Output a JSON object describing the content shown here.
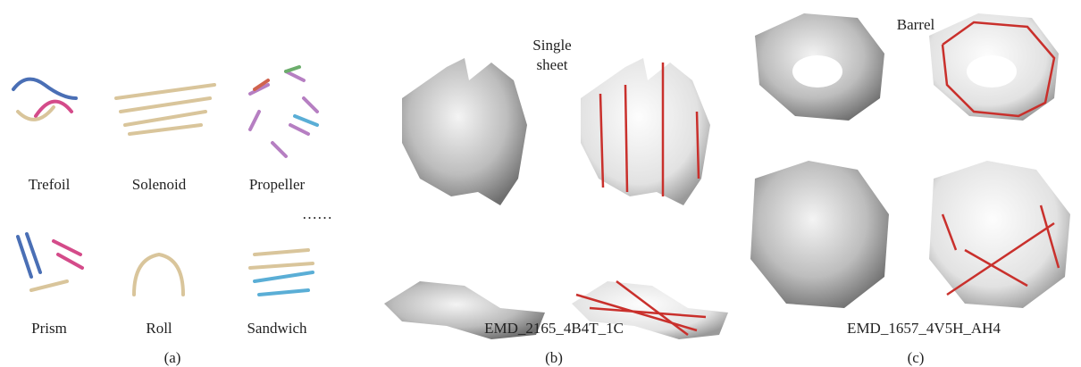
{
  "panel_a": {
    "items": [
      {
        "label": "Trefoil"
      },
      {
        "label": "Solenoid"
      },
      {
        "label": "Propeller"
      },
      {
        "label": "Prism"
      },
      {
        "label": "Roll"
      },
      {
        "label": "Sandwich"
      }
    ],
    "ellipsis": "……",
    "caption": "(a)"
  },
  "panel_b": {
    "annotation": "Single sheet",
    "id": "EMD_2165_4B4T_1C",
    "caption": "(b)"
  },
  "panel_c": {
    "annotation": "Barrel",
    "id": "EMD_1657_4V5H_AH4",
    "caption": "(c)"
  }
}
